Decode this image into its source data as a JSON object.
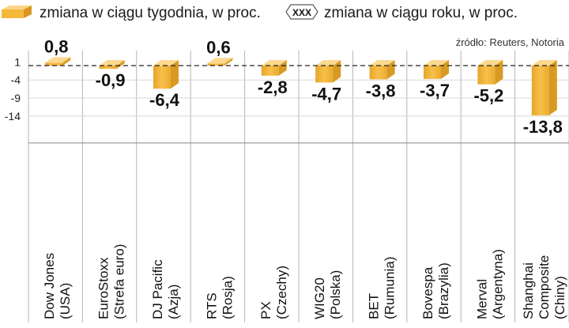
{
  "chart_data": {
    "type": "bar",
    "legend": {
      "weekly_label": "zmiana w ciągu tygodnia, w proc.",
      "yearly_badge": "XXX",
      "yearly_label": "zmiana w ciągu roku, w proc."
    },
    "source": "źródło: Reuters, Notoria",
    "y_ticks": [
      1,
      -4,
      -9,
      -14
    ],
    "ylim": [
      -15,
      1.8
    ],
    "series": [
      {
        "name": "zmiana w ciągu tygodnia, w proc.",
        "color": "#F5B93C",
        "values": [
          0.8,
          -0.9,
          -6.4,
          0.6,
          -2.8,
          -4.7,
          -3.8,
          -3.7,
          -5.2,
          -13.8
        ]
      }
    ],
    "value_labels": [
      "0,8",
      "-0,9",
      "-6,4",
      "0,6",
      "-2,8",
      "-4,7",
      "-3,8",
      "-3,7",
      "-5,2",
      "-13,8"
    ],
    "categories": [
      [
        "Dow Jones",
        "(USA)"
      ],
      [
        "EuroStoxx",
        "(Strefa euro)"
      ],
      [
        "DJ Pacific",
        "(Azja)"
      ],
      [
        "RTS",
        "(Rosja)"
      ],
      [
        "PX",
        "(Czechy)"
      ],
      [
        "WIG20",
        "(Polska)"
      ],
      [
        "BET",
        "(Rumunia)"
      ],
      [
        "Bovespa",
        "(Brazylia)"
      ],
      [
        "Merval",
        "(Argentyna)"
      ],
      [
        "Shanghai",
        "Composite",
        "(Chiny)"
      ]
    ]
  }
}
